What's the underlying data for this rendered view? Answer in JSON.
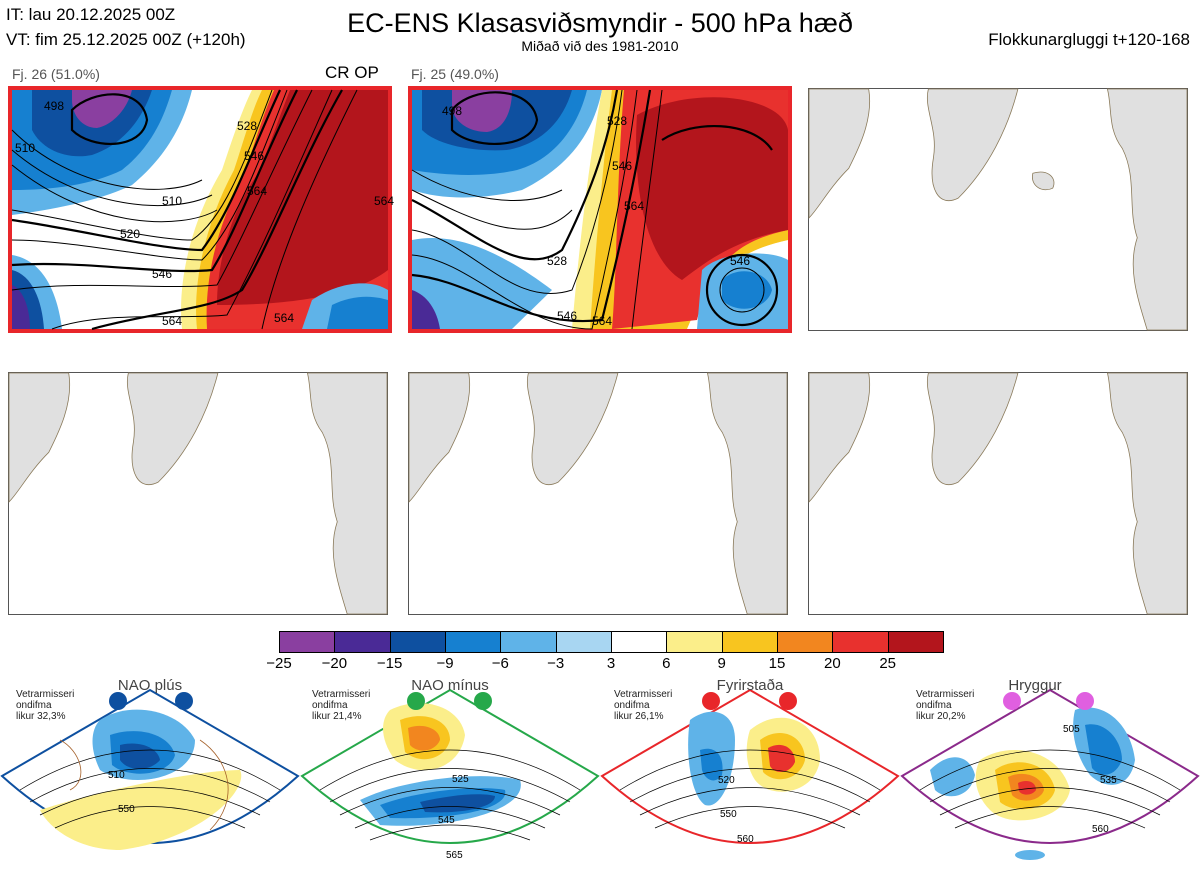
{
  "header": {
    "it_line": "IT: lau 20.12.2025 00Z",
    "vt_line": "VT: fim 25.12.2025 00Z  (+120h)",
    "title": "EC-ENS Klasasviðsmyndir - 500 hPa hæð",
    "subtitle": "Miðað við des 1981-2010",
    "window": "Flokkunargluggi t+120-168"
  },
  "panels": [
    {
      "label": "Fj. 26 (51.0%)",
      "tag": "CR OP",
      "active": true,
      "contour_labels": [
        "498",
        "510",
        "520",
        "528",
        "546",
        "564",
        "510",
        "546",
        "564",
        "564",
        "564"
      ]
    },
    {
      "label": "Fj. 25 (49.0%)",
      "tag": "",
      "active": true,
      "contour_labels": [
        "498",
        "528",
        "546",
        "564",
        "528",
        "546",
        "546",
        "564"
      ]
    },
    {
      "label": "",
      "active": false
    },
    {
      "label": "",
      "active": false
    },
    {
      "label": "",
      "active": false
    },
    {
      "label": "",
      "active": false
    }
  ],
  "colorbar": {
    "ticks": [
      "−25",
      "−20",
      "−15",
      "−9",
      "−6",
      "−3",
      "3",
      "6",
      "9",
      "15",
      "20",
      "25"
    ],
    "colors": [
      "#8a3fa0",
      "#4a2a96",
      "#0e50a0",
      "#1680d0",
      "#5fb3e8",
      "#a8d6f2",
      "#ffffff",
      "#fbee8a",
      "#f8c51f",
      "#f2861f",
      "#e8312e",
      "#b3151c"
    ]
  },
  "regimes": [
    {
      "name": "NAO plús",
      "text": [
        "Vetrarmisseri",
        "ondifma",
        "likur 32,3%"
      ],
      "color": "#0e50a0",
      "labels": [
        "510",
        "550"
      ]
    },
    {
      "name": "NAO mínus",
      "text": [
        "Vetrarmisseri",
        "ondifma",
        "likur 21,4%"
      ],
      "color": "#26a84a",
      "labels": [
        "525",
        "545",
        "565"
      ]
    },
    {
      "name": "Fyrirstaða",
      "text": [
        "Vetrarmisseri",
        "ondifma",
        "likur 26,1%"
      ],
      "color": "#e8262a",
      "labels": [
        "520",
        "550",
        "560"
      ]
    },
    {
      "name": "Hryggur",
      "text": [
        "Vetrarmisseri",
        "ondifma",
        "likur 20,2%"
      ],
      "color": "#8b2a8b",
      "labels": [
        "505",
        "535",
        "560"
      ]
    }
  ]
}
